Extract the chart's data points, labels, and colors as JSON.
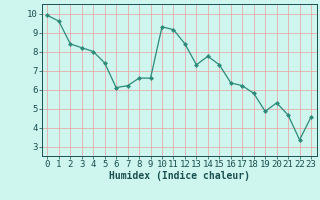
{
  "x": [
    0,
    1,
    2,
    3,
    4,
    5,
    6,
    7,
    8,
    9,
    10,
    11,
    12,
    13,
    14,
    15,
    16,
    17,
    18,
    19,
    20,
    21,
    22,
    23
  ],
  "y": [
    9.9,
    9.6,
    8.4,
    8.2,
    8.0,
    7.4,
    6.1,
    6.2,
    6.6,
    6.6,
    9.3,
    9.15,
    8.4,
    7.3,
    7.75,
    7.3,
    6.35,
    6.2,
    5.8,
    4.85,
    5.3,
    4.65,
    3.35,
    4.55
  ],
  "line_color": "#2e8b7a",
  "marker": "D",
  "marker_size": 2.0,
  "bg_color": "#cef5ee",
  "grid_color": "#e8a0a0",
  "xlabel": "Humidex (Indice chaleur)",
  "ylim": [
    2.5,
    10.5
  ],
  "xlim": [
    -0.5,
    23.5
  ],
  "yticks": [
    3,
    4,
    5,
    6,
    7,
    8,
    9,
    10
  ],
  "xticks": [
    0,
    1,
    2,
    3,
    4,
    5,
    6,
    7,
    8,
    9,
    10,
    11,
    12,
    13,
    14,
    15,
    16,
    17,
    18,
    19,
    20,
    21,
    22,
    23
  ],
  "label_color": "#1a5050",
  "tick_color": "#1a5050",
  "font_size": 6.5,
  "xlabel_fontsize": 7.0
}
